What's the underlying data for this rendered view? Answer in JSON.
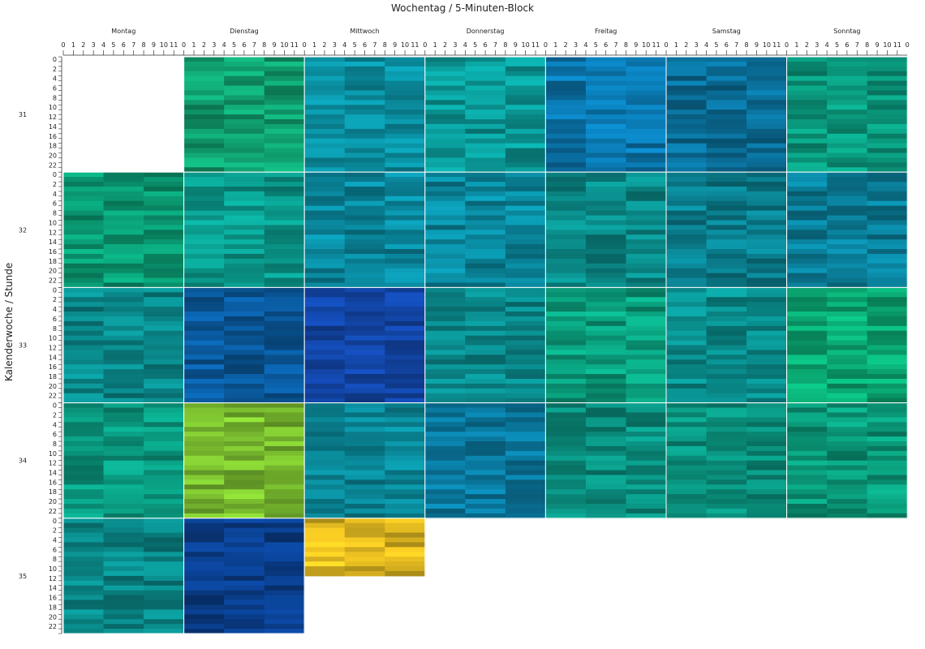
{
  "chart_data": {
    "type": "heatmap",
    "title": "Wochentag / 5-Minuten-Block",
    "ylabel": "Kalenderwoche / Stunde",
    "days": [
      "Montag",
      "Dienstag",
      "Mittwoch",
      "Donnerstag",
      "Freitag",
      "Samstag",
      "Sonntag"
    ],
    "weeks": [
      "31",
      "32",
      "33",
      "34",
      "35"
    ],
    "x_ticks": [
      0,
      1,
      2,
      3,
      4,
      5,
      6,
      7,
      8,
      9,
      10,
      11
    ],
    "y_tick_labels": [
      "0",
      "2",
      "4",
      "6",
      "8",
      "10",
      "12",
      "14",
      "16",
      "18",
      "20",
      "22"
    ],
    "blocks_per_hour": 12,
    "hours_per_day": 24,
    "grid": true,
    "legend": "none",
    "cell_colors": [
      [
        "",
        "#10a070",
        "#0a8ea0",
        "#0a9a98",
        "#0a78b0",
        "#0a6e98",
        "#0a9a7e"
      ],
      [
        "#0a9a72",
        "#0a9a8c",
        "#0a8aa0",
        "#0a8aa0",
        "#0a8a88",
        "#0a8090",
        "#0a7f9a"
      ],
      [
        "#0a8a8c",
        "#0a5a9e",
        "#1246a8",
        "#0a8a8c",
        "#0aa07e",
        "#0a9090",
        "#0aa872"
      ],
      [
        "#0a9a80",
        "#7cc030",
        "#0a8898",
        "#0a7aa0",
        "#0a9080",
        "#0a9480",
        "#0a9a7a"
      ],
      [
        "#0a8888",
        "#0a3e8c",
        "#e0b820",
        "",
        "",
        "",
        ""
      ]
    ],
    "notes_filled_hours": {
      "week35_Mittwoch": 12
    }
  }
}
